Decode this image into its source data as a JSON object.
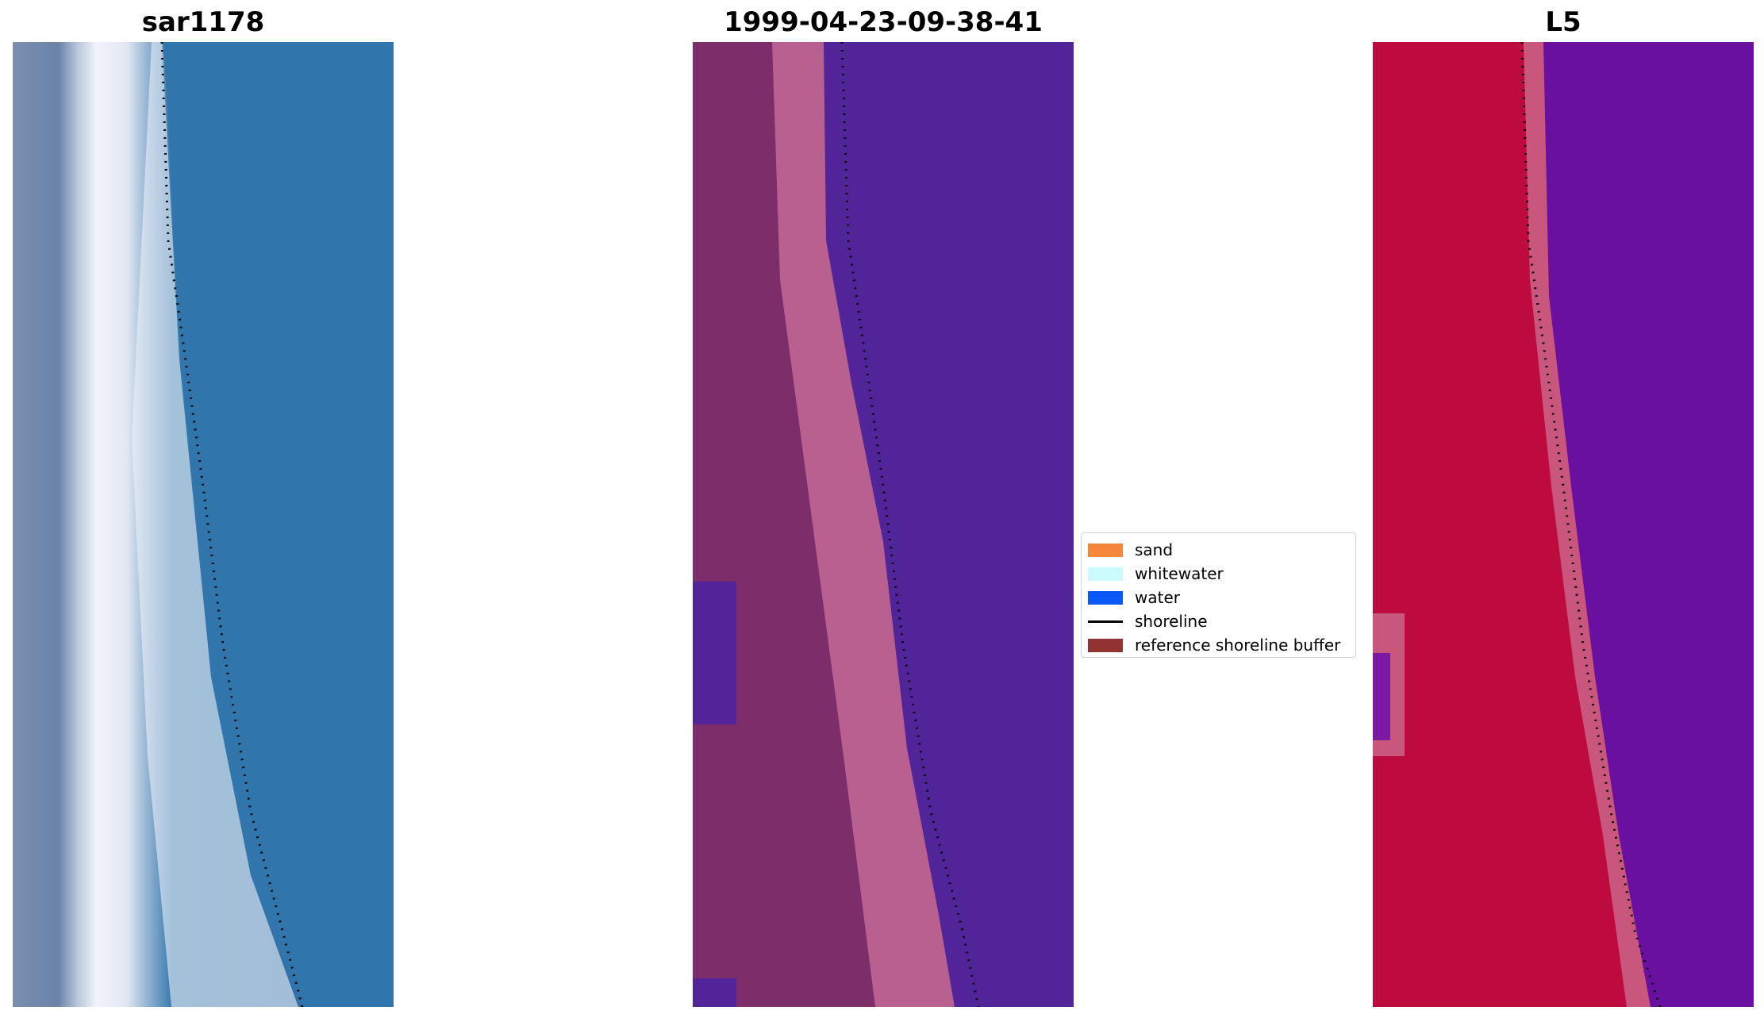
{
  "panels": [
    {
      "title": "sar1178",
      "image": "satellite-rgb-beach",
      "colors": {
        "water": "#2f6fa8",
        "sand": "#e9eef6",
        "land": "#6f86ab"
      }
    },
    {
      "title": "1999-04-23-09-38-41",
      "image": "classified-image",
      "colors": {
        "water": "#52249a",
        "sand": "#b8608f",
        "land": "#7d2d6a"
      }
    },
    {
      "title": "L5",
      "image": "index-image",
      "colors": {
        "water": "#6a10a0",
        "sand": "#c9567c",
        "land": "#be0b3e"
      }
    }
  ],
  "legend": {
    "items": [
      {
        "label": "sand",
        "color": "#f4873c",
        "type": "patch"
      },
      {
        "label": "whitewater",
        "color": "#ccfbff",
        "type": "patch"
      },
      {
        "label": "water",
        "color": "#0a58f5",
        "type": "patch"
      },
      {
        "label": "shoreline",
        "color": "#000000",
        "type": "line"
      },
      {
        "label": "reference shoreline buffer",
        "color": "#923233",
        "type": "patch"
      }
    ]
  }
}
